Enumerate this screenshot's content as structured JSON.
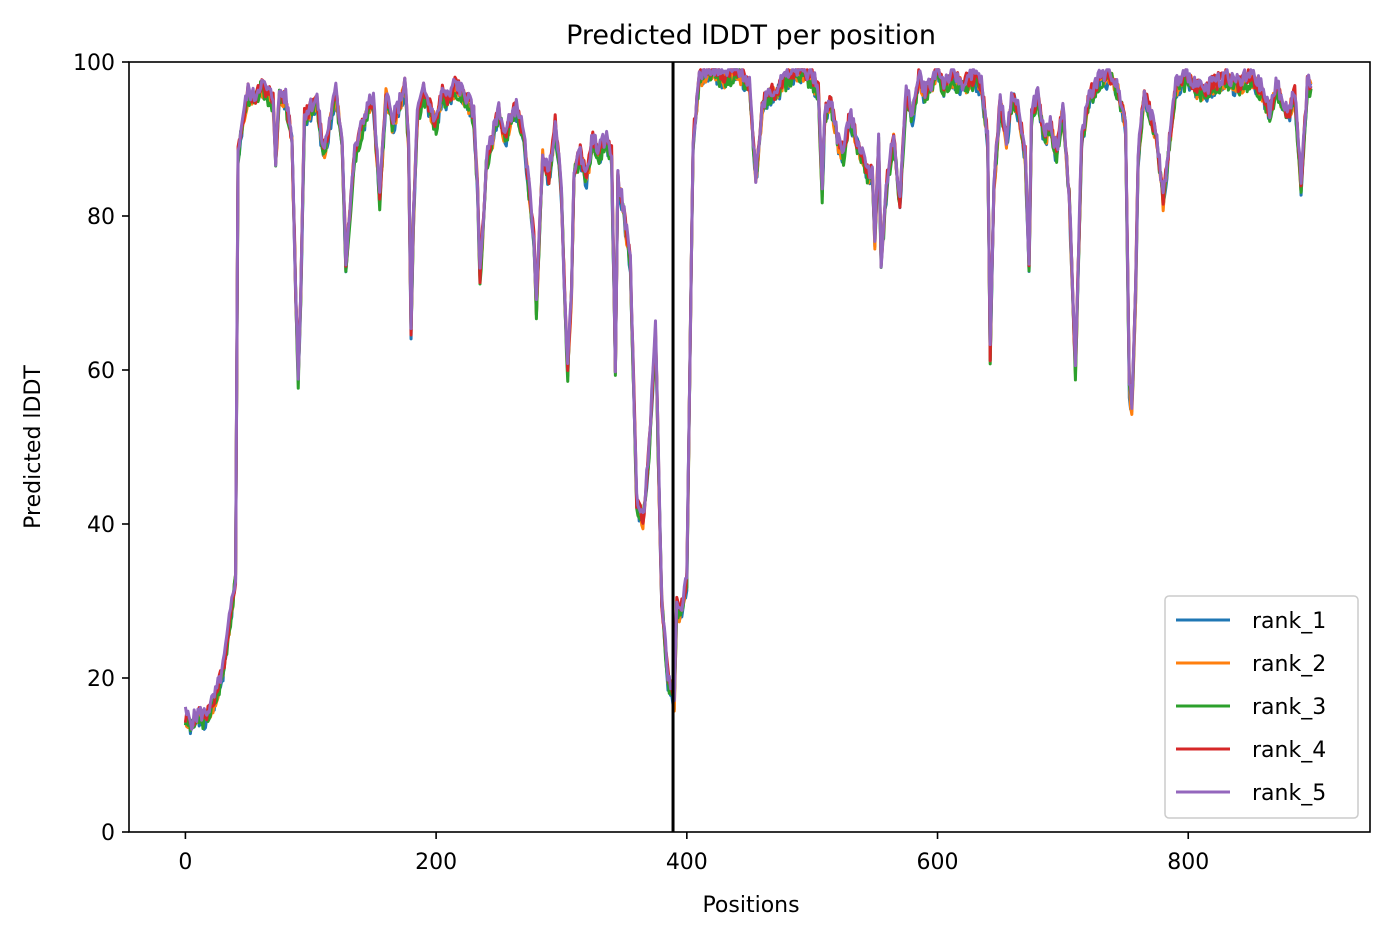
{
  "chart_data": {
    "type": "line",
    "title": "Predicted lDDT per position",
    "xlabel": "Positions",
    "ylabel": "Predicted lDDT",
    "xlim": [
      -45,
      945
    ],
    "ylim": [
      0,
      100
    ],
    "xticks": [
      0,
      200,
      400,
      600,
      800
    ],
    "yticks": [
      0,
      20,
      40,
      60,
      80,
      100
    ],
    "grid": false,
    "legend_position": "lower-right",
    "vertical_line_x": 389,
    "vertical_line_color": "#000000",
    "series": [
      {
        "name": "rank_1",
        "color": "#1f77b4",
        "offset": -0.6,
        "seed": 1
      },
      {
        "name": "rank_2",
        "color": "#ff7f0e",
        "offset": -0.3,
        "seed": 2
      },
      {
        "name": "rank_3",
        "color": "#2ca02c",
        "offset": -0.5,
        "seed": 3
      },
      {
        "name": "rank_4",
        "color": "#d62728",
        "offset": 0.2,
        "seed": 4
      },
      {
        "name": "rank_5",
        "color": "#9467bd",
        "offset": 0.4,
        "seed": 5
      }
    ],
    "base_profile": {
      "x": [
        0,
        5,
        10,
        15,
        20,
        25,
        30,
        35,
        40,
        42,
        45,
        50,
        55,
        60,
        65,
        70,
        72,
        75,
        80,
        85,
        88,
        90,
        92,
        95,
        100,
        105,
        110,
        115,
        120,
        125,
        128,
        130,
        135,
        140,
        145,
        150,
        155,
        160,
        165,
        170,
        175,
        178,
        180,
        182,
        185,
        190,
        195,
        200,
        205,
        210,
        215,
        220,
        225,
        230,
        233,
        235,
        238,
        240,
        245,
        250,
        255,
        260,
        265,
        270,
        275,
        278,
        280,
        285,
        290,
        295,
        300,
        303,
        305,
        308,
        310,
        315,
        320,
        325,
        330,
        335,
        340,
        343,
        345,
        350,
        355,
        360,
        365,
        370,
        375,
        380,
        385,
        389,
        390,
        392,
        395,
        400,
        405,
        410,
        420,
        430,
        440,
        450,
        455,
        458,
        460,
        465,
        470,
        480,
        490,
        500,
        505,
        508,
        510,
        515,
        520,
        525,
        530,
        535,
        540,
        545,
        548,
        550,
        553,
        555,
        560,
        565,
        570,
        575,
        580,
        585,
        590,
        595,
        600,
        605,
        610,
        620,
        630,
        635,
        640,
        642,
        645,
        650,
        655,
        660,
        665,
        670,
        673,
        675,
        680,
        685,
        690,
        695,
        700,
        705,
        710,
        715,
        720,
        730,
        740,
        745,
        750,
        753,
        755,
        758,
        760,
        765,
        770,
        775,
        780,
        790,
        800,
        810,
        820,
        830,
        840,
        850,
        860,
        865,
        870,
        875,
        880,
        885,
        890,
        895,
        898
      ],
      "y": [
        15,
        14,
        15,
        15,
        16,
        18,
        21,
        27,
        33,
        88,
        92,
        96,
        95,
        97,
        96,
        95,
        87,
        96,
        95,
        90,
        70,
        59,
        70,
        93,
        94,
        95,
        88,
        92,
        96,
        90,
        74,
        78,
        88,
        91,
        94,
        95,
        82,
        96,
        92,
        94,
        97,
        90,
        65,
        80,
        93,
        96,
        94,
        92,
        96,
        95,
        97,
        96,
        95,
        93,
        84,
        72,
        80,
        87,
        90,
        94,
        90,
        93,
        94,
        90,
        82,
        77,
        68,
        88,
        85,
        92,
        83,
        67,
        60,
        70,
        86,
        88,
        85,
        90,
        88,
        90,
        88,
        60,
        85,
        80,
        74,
        43,
        40,
        50,
        65,
        30,
        20,
        18,
        17,
        30,
        28,
        33,
        90,
        98,
        99,
        98,
        99,
        97,
        85,
        90,
        94,
        96,
        96,
        98,
        99,
        98,
        96,
        83,
        93,
        95,
        90,
        88,
        93,
        90,
        88,
        85,
        86,
        77,
        90,
        74,
        85,
        90,
        82,
        96,
        93,
        98,
        96,
        97,
        99,
        97,
        98,
        97,
        98,
        97,
        90,
        62,
        84,
        95,
        90,
        96,
        93,
        88,
        73,
        93,
        96,
        90,
        92,
        88,
        94,
        83,
        60,
        90,
        95,
        98,
        98,
        96,
        92,
        58,
        55,
        70,
        88,
        96,
        93,
        90,
        82,
        97,
        98,
        96,
        97,
        98,
        97,
        98,
        96,
        93,
        97,
        95,
        93,
        96,
        84,
        97,
        97
      ]
    }
  }
}
